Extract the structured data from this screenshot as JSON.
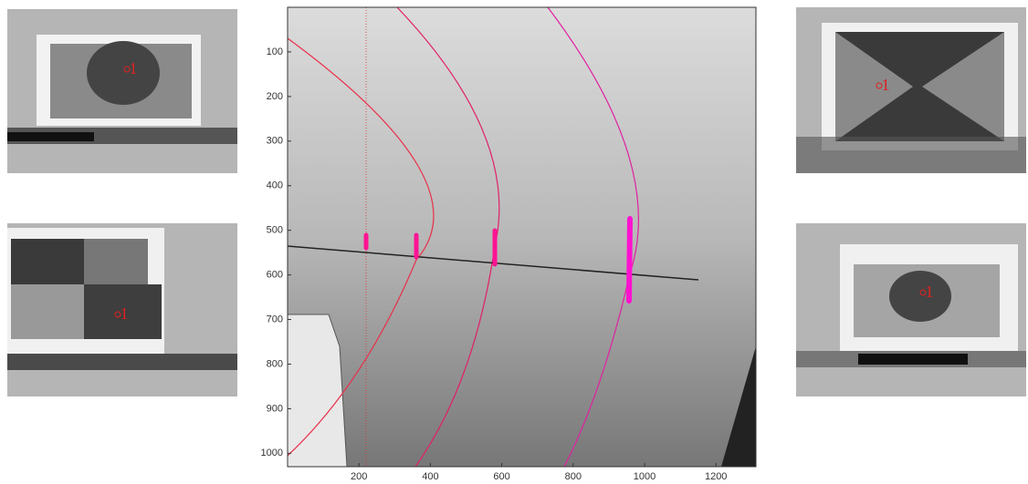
{
  "main_image": {
    "xlim": [
      0,
      1312
    ],
    "ylim": [
      0,
      1030
    ],
    "xticks": [
      200,
      400,
      600,
      800,
      1000,
      1200
    ],
    "yticks": [
      100,
      200,
      300,
      400,
      500,
      600,
      700,
      800,
      900,
      1000
    ]
  },
  "thumbnails": [
    {
      "label": "1"
    },
    {
      "label": "1"
    },
    {
      "label": "1"
    },
    {
      "label": "1"
    }
  ]
}
